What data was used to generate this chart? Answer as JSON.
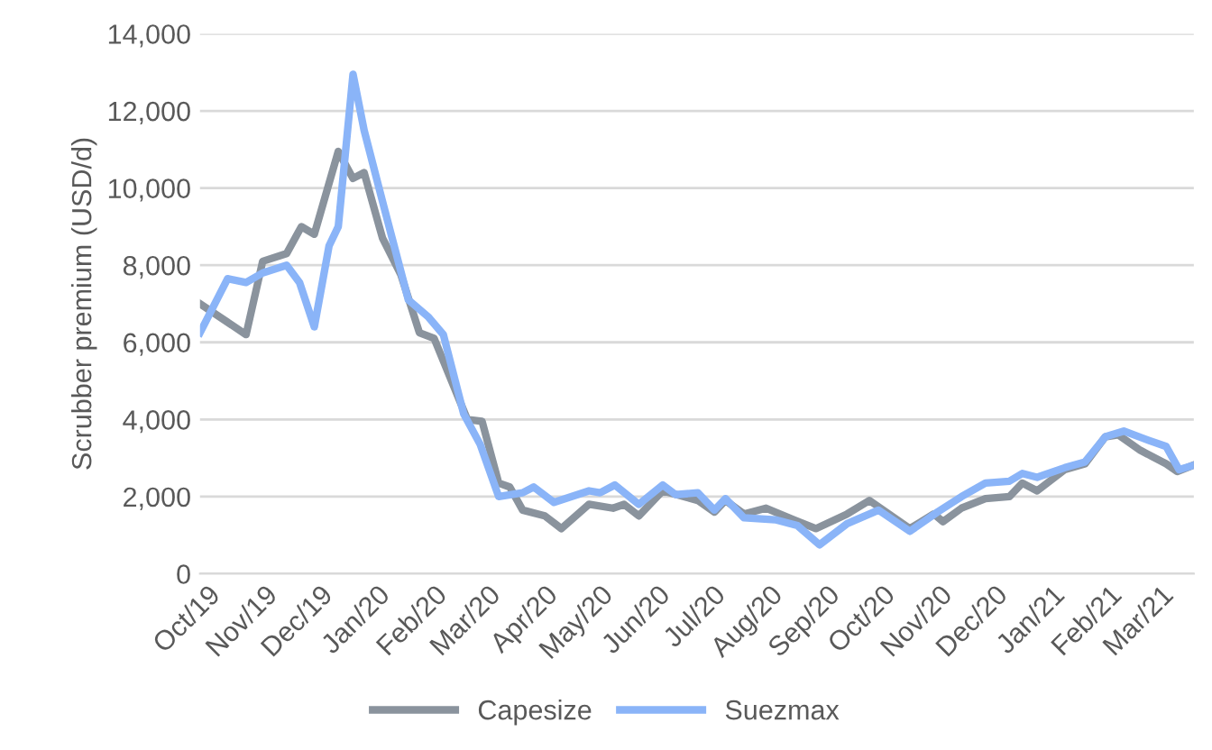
{
  "chart_data": {
    "type": "line",
    "ylabel": "Scrubber premium (USD/d)",
    "xlim": [
      "2019-09-27",
      "2021-03-19"
    ],
    "xticks": [
      {
        "value": "2019-10-01",
        "label": "Oct/19"
      },
      {
        "value": "2019-11-01",
        "label": "Nov/19"
      },
      {
        "value": "2019-12-01",
        "label": "Dec/19"
      },
      {
        "value": "2020-01-01",
        "label": "Jan/20"
      },
      {
        "value": "2020-02-01",
        "label": "Feb/20"
      },
      {
        "value": "2020-03-01",
        "label": "Mar/20"
      },
      {
        "value": "2020-04-01",
        "label": "Apr/20"
      },
      {
        "value": "2020-05-01",
        "label": "May/20"
      },
      {
        "value": "2020-06-01",
        "label": "Jun/20"
      },
      {
        "value": "2020-07-01",
        "label": "Jul/20"
      },
      {
        "value": "2020-08-01",
        "label": "Aug/20"
      },
      {
        "value": "2020-09-01",
        "label": "Sep/20"
      },
      {
        "value": "2020-10-01",
        "label": "Oct/20"
      },
      {
        "value": "2020-11-01",
        "label": "Nov/20"
      },
      {
        "value": "2020-12-01",
        "label": "Dec/20"
      },
      {
        "value": "2021-01-01",
        "label": "Jan/21"
      },
      {
        "value": "2021-02-01",
        "label": "Feb/21"
      },
      {
        "value": "2021-03-01",
        "label": "Mar/21"
      }
    ],
    "ylim": [
      0,
      14000
    ],
    "yticks": [
      {
        "value": 0,
        "label": "0"
      },
      {
        "value": 2000,
        "label": "2,000"
      },
      {
        "value": 4000,
        "label": "4,000"
      },
      {
        "value": 6000,
        "label": "6,000"
      },
      {
        "value": 8000,
        "label": "8,000"
      },
      {
        "value": 10000,
        "label": "10,000"
      },
      {
        "value": 12000,
        "label": "12,000"
      },
      {
        "value": 14000,
        "label": "14,000"
      }
    ],
    "grid": "y",
    "legend": "bottom",
    "marker": "none",
    "line_style": "solid",
    "series": [
      {
        "name": "Capesize",
        "color": "#8a939d",
        "x": [
          "2019-09-27",
          "2019-10-22",
          "2019-10-31",
          "2019-11-13",
          "2019-11-21",
          "2019-11-28",
          "2019-12-11",
          "2019-12-19",
          "2019-12-25",
          "2020-01-04",
          "2020-01-14",
          "2020-01-24",
          "2020-02-01",
          "2020-02-19",
          "2020-02-27",
          "2020-03-07",
          "2020-03-13",
          "2020-03-20",
          "2020-04-01",
          "2020-04-10",
          "2020-04-25",
          "2020-05-08",
          "2020-05-14",
          "2020-05-22",
          "2020-06-04",
          "2020-06-23",
          "2020-07-02",
          "2020-07-08",
          "2020-07-18",
          "2020-07-30",
          "2020-08-14",
          "2020-08-26",
          "2020-09-12",
          "2020-09-24",
          "2020-10-16",
          "2020-10-29",
          "2020-11-03",
          "2020-11-13",
          "2020-11-26",
          "2020-12-09",
          "2020-12-16",
          "2020-12-24",
          "2021-01-08",
          "2021-01-19",
          "2021-01-30",
          "2021-02-06",
          "2021-02-18",
          "2021-03-04",
          "2021-03-10",
          "2021-03-18"
        ],
        "values": [
          7000,
          6200,
          8100,
          8300,
          9000,
          8800,
          10950,
          10250,
          10400,
          8700,
          7750,
          6250,
          6100,
          4000,
          3950,
          2350,
          2250,
          1650,
          1500,
          1170,
          1800,
          1700,
          1800,
          1500,
          2150,
          1900,
          1600,
          1900,
          1550,
          1700,
          1400,
          1170,
          1550,
          1900,
          1170,
          1550,
          1350,
          1700,
          1950,
          2000,
          2350,
          2150,
          2700,
          2850,
          3550,
          3600,
          3200,
          2850,
          2650,
          2800
        ]
      },
      {
        "name": "Suezmax",
        "color": "#8ab4f8",
        "x": [
          "2019-09-27",
          "2019-10-12",
          "2019-10-22",
          "2019-10-31",
          "2019-11-13",
          "2019-11-20",
          "2019-11-28",
          "2019-12-06",
          "2019-12-11",
          "2019-12-19",
          "2019-12-25",
          "2020-01-04",
          "2020-01-18",
          "2020-01-29",
          "2020-02-06",
          "2020-02-17",
          "2020-02-26",
          "2020-03-07",
          "2020-03-20",
          "2020-03-26",
          "2020-04-06",
          "2020-04-25",
          "2020-05-01",
          "2020-05-09",
          "2020-05-22",
          "2020-06-04",
          "2020-06-11",
          "2020-06-23",
          "2020-07-02",
          "2020-07-08",
          "2020-07-18",
          "2020-08-04",
          "2020-08-16",
          "2020-08-28",
          "2020-09-12",
          "2020-09-29",
          "2020-10-16",
          "2020-10-31",
          "2020-11-13",
          "2020-11-26",
          "2020-12-09",
          "2020-12-16",
          "2020-12-24",
          "2021-01-08",
          "2021-01-19",
          "2021-01-30",
          "2021-02-09",
          "2021-02-23",
          "2021-03-04",
          "2021-03-11",
          "2021-03-18"
        ],
        "values": [
          6250,
          7650,
          7550,
          7800,
          8000,
          7550,
          6400,
          8500,
          9000,
          12950,
          11500,
          9650,
          7100,
          6650,
          6200,
          4150,
          3350,
          2000,
          2100,
          2250,
          1850,
          2150,
          2100,
          2300,
          1800,
          2300,
          2050,
          2100,
          1650,
          1950,
          1450,
          1400,
          1250,
          750,
          1300,
          1650,
          1100,
          1600,
          2000,
          2350,
          2400,
          2600,
          2500,
          2750,
          2900,
          3550,
          3700,
          3450,
          3300,
          2700,
          2800
        ]
      }
    ]
  }
}
